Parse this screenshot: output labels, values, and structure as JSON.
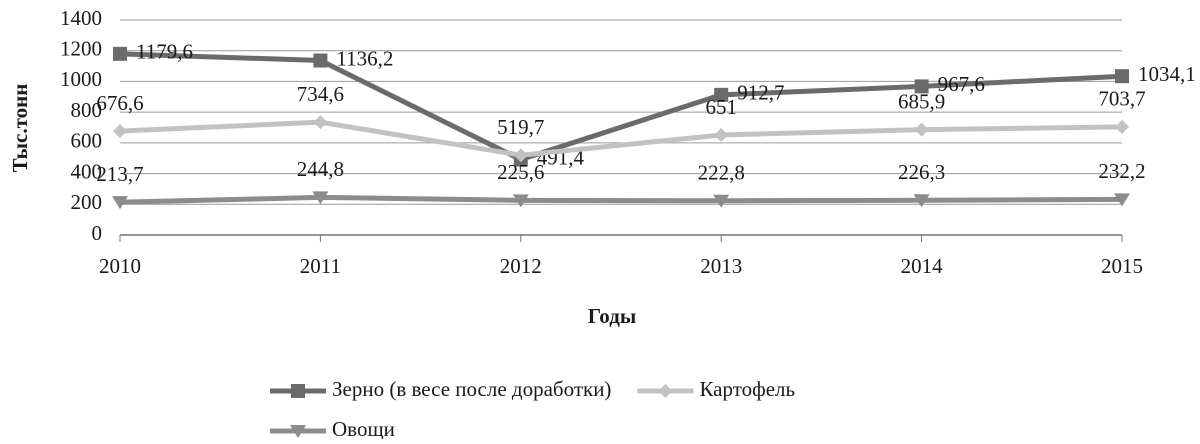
{
  "chart_data": {
    "type": "line",
    "x_label": "Годы",
    "y_label": "Тыс.тонн",
    "categories": [
      "2010",
      "2011",
      "2012",
      "2013",
      "2014",
      "2015"
    ],
    "series": [
      {
        "name": "Зерно (в весе после доработки)",
        "color": "#6b6b6b",
        "marker": "square",
        "values": [
          1179.6,
          1136.2,
          491.4,
          912.7,
          967.6,
          1034.1
        ],
        "value_labels": [
          "1179,6",
          "1136,2",
          "491,4",
          "912,7",
          "967,6",
          "1034,1"
        ]
      },
      {
        "name": "Картофель",
        "color": "#c2c2c2",
        "marker": "diamond",
        "values": [
          676.6,
          734.6,
          519.7,
          651,
          685.9,
          703.7
        ],
        "value_labels": [
          "676,6",
          "734,6",
          "519,7",
          "651",
          "685,9",
          "703,7"
        ]
      },
      {
        "name": "Овощи",
        "color": "#8c8c8c",
        "marker": "triangle-down",
        "values": [
          213.7,
          244.8,
          225.6,
          222.8,
          226.3,
          232.2
        ],
        "value_labels": [
          "213,7",
          "244,8",
          "225,6",
          "222,8",
          "226,3",
          "232,2"
        ]
      }
    ],
    "ylim": [
      0,
      1400
    ],
    "yticks": [
      0,
      200,
      400,
      600,
      800,
      1000,
      1200,
      1400
    ],
    "grid": true,
    "legend": "bottom"
  }
}
